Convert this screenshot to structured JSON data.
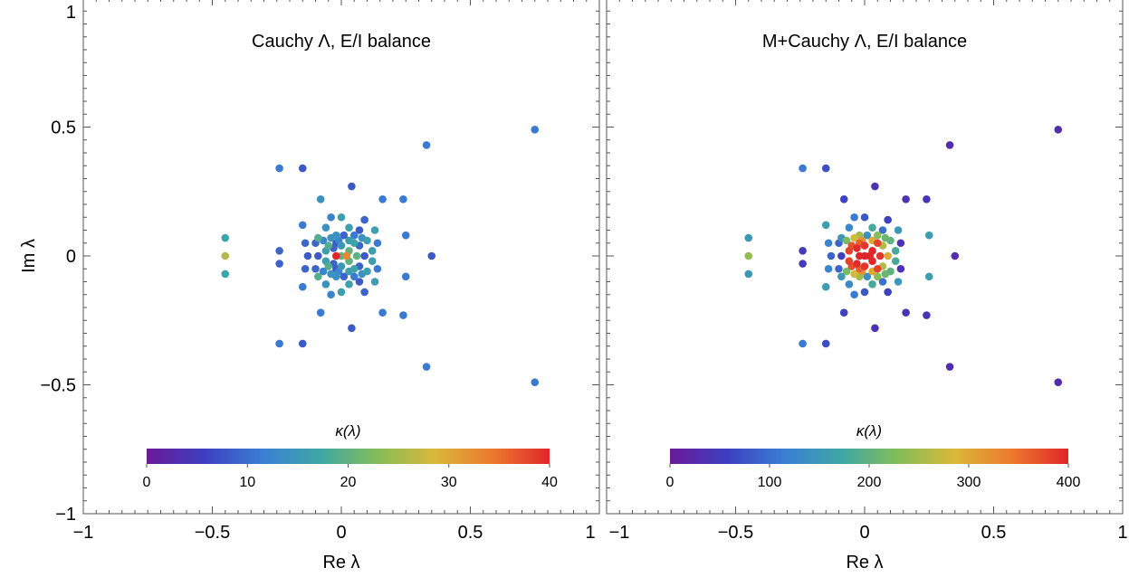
{
  "chart_data": [
    {
      "type": "scatter",
      "title": "Cauchy Λ,  E/I balance",
      "xlabel": "Re λ",
      "ylabel": "Im λ",
      "xlim": [
        -1,
        1
      ],
      "ylim": [
        -1,
        1
      ],
      "xticks": [
        {
          "value": -1,
          "label": "−1"
        },
        {
          "value": -0.5,
          "label": "−0.5"
        },
        {
          "value": 0,
          "label": "0"
        },
        {
          "value": 0.5,
          "label": "0.5"
        },
        {
          "value": 1,
          "label": "1"
        }
      ],
      "yticks": [
        {
          "value": -1,
          "label": "−1"
        },
        {
          "value": -0.5,
          "label": "−0.5"
        },
        {
          "value": 0,
          "label": "0"
        },
        {
          "value": 0.5,
          "label": "0.5"
        },
        {
          "value": 1,
          "label": "1"
        }
      ],
      "grid": false,
      "colorbar": {
        "title": "κ(λ)",
        "min": 0,
        "max": 40,
        "ticks": [
          0,
          10,
          20,
          30,
          40
        ],
        "placement": "bottom"
      },
      "points": [
        [
          0.75,
          0.49,
          11
        ],
        [
          0.75,
          -0.49,
          11
        ],
        [
          0.33,
          0.43,
          11
        ],
        [
          0.33,
          -0.43,
          11
        ],
        [
          -0.45,
          0.0,
          26
        ],
        [
          -0.45,
          0.07,
          17
        ],
        [
          -0.45,
          -0.07,
          17
        ],
        [
          -0.24,
          0.34,
          11
        ],
        [
          -0.24,
          -0.34,
          11
        ],
        [
          -0.15,
          0.34,
          8
        ],
        [
          -0.15,
          -0.34,
          8
        ],
        [
          0.35,
          0.0,
          8
        ],
        [
          0.24,
          0.22,
          11
        ],
        [
          0.24,
          -0.23,
          11
        ],
        [
          0.16,
          0.22,
          11
        ],
        [
          0.16,
          -0.22,
          11
        ],
        [
          0.04,
          0.27,
          8
        ],
        [
          0.04,
          -0.28,
          8
        ],
        [
          -0.08,
          0.22,
          14
        ],
        [
          -0.08,
          -0.22,
          11
        ],
        [
          0.25,
          0.08,
          11
        ],
        [
          0.25,
          -0.08,
          11
        ],
        [
          0.14,
          0.05,
          11
        ],
        [
          0.14,
          -0.05,
          11
        ],
        [
          -0.24,
          0.02,
          9
        ],
        [
          -0.24,
          -0.03,
          9
        ],
        [
          -0.14,
          0.05,
          9
        ],
        [
          -0.14,
          -0.05,
          9
        ],
        [
          -0.04,
          0.15,
          12
        ],
        [
          -0.04,
          -0.15,
          12
        ],
        [
          0.09,
          0.14,
          9
        ],
        [
          0.09,
          -0.14,
          9
        ],
        [
          0.0,
          0.15,
          16
        ],
        [
          0.0,
          -0.14,
          16
        ],
        [
          -0.09,
          0.0,
          8
        ],
        [
          -0.09,
          0.07,
          19
        ],
        [
          -0.09,
          -0.08,
          19
        ],
        [
          -0.02,
          0.0,
          40
        ],
        [
          0.02,
          0.0,
          33
        ],
        [
          0.05,
          0.05,
          17
        ],
        [
          0.05,
          -0.05,
          17
        ],
        [
          -0.05,
          0.04,
          19
        ],
        [
          -0.05,
          -0.04,
          19
        ],
        [
          0.09,
          0.0,
          8
        ],
        [
          -0.13,
          0.0,
          8
        ],
        [
          0.12,
          0.02,
          16
        ],
        [
          0.12,
          -0.02,
          16
        ],
        [
          0.0,
          0.04,
          15
        ],
        [
          0.0,
          -0.04,
          15
        ],
        [
          -0.02,
          0.08,
          14
        ],
        [
          -0.02,
          -0.08,
          14
        ],
        [
          0.05,
          0.08,
          11
        ],
        [
          0.05,
          -0.08,
          11
        ],
        [
          0.03,
          0.11,
          16
        ],
        [
          0.03,
          -0.11,
          16
        ],
        [
          -0.06,
          0.11,
          14
        ],
        [
          -0.06,
          -0.11,
          14
        ],
        [
          0.06,
          0.0,
          20
        ],
        [
          0.0,
          0.0,
          20
        ],
        [
          0.13,
          0.1,
          16
        ],
        [
          0.13,
          -0.1,
          16
        ],
        [
          -0.15,
          0.12,
          11
        ],
        [
          -0.15,
          -0.12,
          11
        ],
        [
          -0.1,
          0.05,
          9
        ],
        [
          -0.1,
          -0.05,
          9
        ],
        [
          0.07,
          0.04,
          9
        ],
        [
          0.07,
          -0.04,
          9
        ],
        [
          0.1,
          0.06,
          16
        ],
        [
          0.1,
          -0.06,
          16
        ],
        [
          -0.03,
          0.03,
          9
        ],
        [
          -0.03,
          -0.03,
          9
        ],
        [
          0.07,
          0.1,
          8
        ],
        [
          0.07,
          -0.1,
          8
        ],
        [
          0.01,
          0.08,
          9
        ],
        [
          0.01,
          -0.08,
          9
        ],
        [
          -0.06,
          0.02,
          16
        ],
        [
          -0.06,
          -0.02,
          16
        ],
        [
          0.03,
          0.02,
          20
        ],
        [
          0.03,
          -0.02,
          20
        ],
        [
          -0.01,
          0.06,
          12
        ],
        [
          -0.01,
          -0.06,
          12
        ],
        [
          0.03,
          0.06,
          16
        ],
        [
          0.03,
          -0.06,
          16
        ],
        [
          0.08,
          0.07,
          14
        ],
        [
          0.08,
          -0.07,
          14
        ],
        [
          -0.07,
          0.06,
          12
        ],
        [
          -0.07,
          -0.06,
          12
        ],
        [
          -0.04,
          0.07,
          14
        ],
        [
          -0.04,
          -0.07,
          14
        ],
        [
          -0.02,
          0.05,
          8
        ],
        [
          -0.02,
          -0.05,
          8
        ]
      ]
    },
    {
      "type": "scatter",
      "title": "M+Cauchy Λ,  E/I balance",
      "xlabel": "Re λ",
      "ylabel": "",
      "xlim": [
        -1,
        1
      ],
      "ylim": [
        -1,
        1
      ],
      "xticks": [
        {
          "value": -1,
          "label": "−1"
        },
        {
          "value": -0.5,
          "label": "−0.5"
        },
        {
          "value": 0,
          "label": "0"
        },
        {
          "value": 0.5,
          "label": "0.5"
        },
        {
          "value": 1,
          "label": "1"
        }
      ],
      "yticks": [],
      "grid": false,
      "colorbar": {
        "title": "κ(λ)",
        "min": 0,
        "max": 400,
        "ticks": [
          0,
          100,
          200,
          300,
          400
        ],
        "placement": "bottom"
      },
      "points": [
        [
          0.75,
          0.49,
          30
        ],
        [
          0.75,
          -0.49,
          30
        ],
        [
          0.33,
          0.43,
          30
        ],
        [
          0.33,
          -0.43,
          30
        ],
        [
          -0.45,
          0.0,
          240
        ],
        [
          -0.45,
          0.07,
          150
        ],
        [
          -0.45,
          -0.07,
          150
        ],
        [
          -0.24,
          0.34,
          110
        ],
        [
          -0.24,
          -0.34,
          110
        ],
        [
          -0.15,
          0.34,
          70
        ],
        [
          -0.15,
          -0.34,
          70
        ],
        [
          0.35,
          0.0,
          30
        ],
        [
          0.24,
          0.22,
          40
        ],
        [
          0.24,
          -0.23,
          40
        ],
        [
          0.16,
          0.22,
          40
        ],
        [
          0.16,
          -0.22,
          40
        ],
        [
          0.04,
          0.27,
          40
        ],
        [
          0.04,
          -0.28,
          40
        ],
        [
          -0.08,
          0.22,
          60
        ],
        [
          -0.08,
          -0.22,
          60
        ],
        [
          0.25,
          0.08,
          160
        ],
        [
          0.25,
          -0.08,
          160
        ],
        [
          0.14,
          0.05,
          40
        ],
        [
          0.14,
          -0.05,
          40
        ],
        [
          -0.24,
          0.02,
          50
        ],
        [
          -0.24,
          -0.03,
          50
        ],
        [
          -0.14,
          0.05,
          120
        ],
        [
          -0.14,
          -0.05,
          120
        ],
        [
          -0.04,
          0.15,
          110
        ],
        [
          -0.04,
          -0.15,
          110
        ],
        [
          0.09,
          0.14,
          60
        ],
        [
          0.09,
          -0.14,
          60
        ],
        [
          0.0,
          0.15,
          80
        ],
        [
          0.0,
          -0.14,
          80
        ],
        [
          -0.09,
          0.0,
          60
        ],
        [
          -0.09,
          0.07,
          150
        ],
        [
          -0.09,
          -0.08,
          150
        ],
        [
          -0.02,
          0.0,
          400
        ],
        [
          0.02,
          0.0,
          400
        ],
        [
          0.05,
          0.05,
          380
        ],
        [
          0.05,
          -0.05,
          380
        ],
        [
          -0.05,
          0.04,
          370
        ],
        [
          -0.05,
          -0.04,
          370
        ],
        [
          0.09,
          0.0,
          300
        ],
        [
          -0.13,
          0.0,
          90
        ],
        [
          0.12,
          0.02,
          180
        ],
        [
          0.12,
          -0.02,
          180
        ],
        [
          0.0,
          0.04,
          390
        ],
        [
          0.0,
          -0.04,
          390
        ],
        [
          -0.02,
          0.08,
          250
        ],
        [
          -0.02,
          -0.08,
          250
        ],
        [
          0.05,
          0.08,
          230
        ],
        [
          0.05,
          -0.08,
          230
        ],
        [
          0.03,
          0.11,
          180
        ],
        [
          0.03,
          -0.11,
          180
        ],
        [
          -0.06,
          0.11,
          130
        ],
        [
          -0.06,
          -0.11,
          130
        ],
        [
          0.06,
          0.0,
          390
        ],
        [
          0.0,
          0.0,
          400
        ],
        [
          0.13,
          0.1,
          150
        ],
        [
          0.13,
          -0.1,
          150
        ],
        [
          -0.15,
          0.12,
          160
        ],
        [
          -0.15,
          -0.12,
          160
        ],
        [
          -0.1,
          0.05,
          90
        ],
        [
          -0.1,
          -0.05,
          90
        ],
        [
          0.07,
          0.04,
          260
        ],
        [
          0.07,
          -0.04,
          260
        ],
        [
          0.1,
          0.06,
          200
        ],
        [
          0.1,
          -0.06,
          200
        ],
        [
          -0.03,
          0.03,
          395
        ],
        [
          -0.03,
          -0.03,
          395
        ],
        [
          0.07,
          0.1,
          100
        ],
        [
          0.07,
          -0.1,
          100
        ],
        [
          0.01,
          0.08,
          140
        ],
        [
          0.01,
          -0.08,
          140
        ],
        [
          -0.06,
          0.02,
          380
        ],
        [
          -0.06,
          -0.02,
          380
        ],
        [
          0.03,
          0.02,
          400
        ],
        [
          0.03,
          -0.02,
          400
        ],
        [
          -0.01,
          0.06,
          320
        ],
        [
          -0.01,
          -0.06,
          320
        ],
        [
          0.03,
          0.06,
          300
        ],
        [
          0.03,
          -0.06,
          300
        ],
        [
          0.08,
          0.07,
          210
        ],
        [
          0.08,
          -0.07,
          210
        ],
        [
          -0.07,
          0.06,
          220
        ],
        [
          -0.07,
          -0.06,
          220
        ],
        [
          -0.04,
          0.07,
          280
        ],
        [
          -0.04,
          -0.07,
          280
        ],
        [
          -0.02,
          0.05,
          360
        ],
        [
          -0.02,
          -0.05,
          360
        ]
      ]
    }
  ],
  "colors": {
    "colormap": [
      "#6a1a99",
      "#3e3fc0",
      "#3a7fd3",
      "#3ea6a6",
      "#83bd59",
      "#d9b83a",
      "#ec7a2e",
      "#e0262a"
    ],
    "frame": "#555555"
  }
}
